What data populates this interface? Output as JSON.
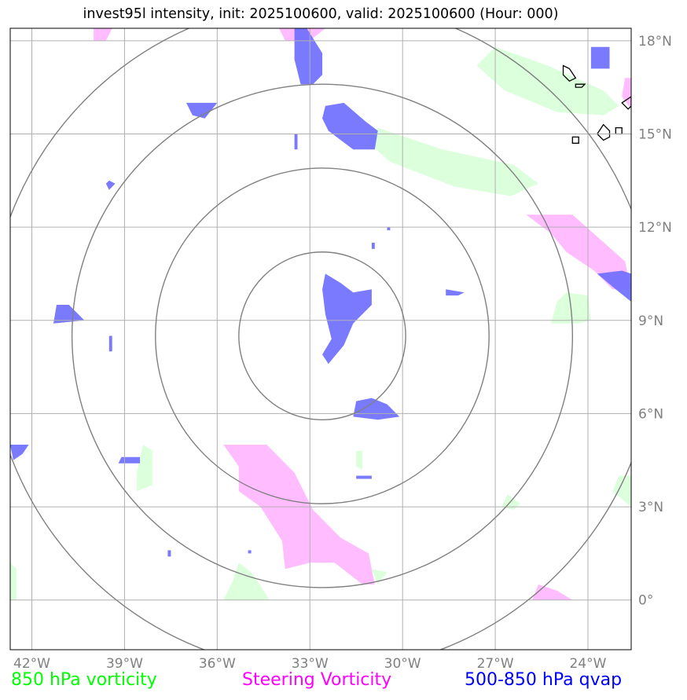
{
  "title": "invest95l intensity, init: 2025100600, valid: 2025100600 (Hour: 000)",
  "map": {
    "lon_range": [
      -42.7,
      -22.6
    ],
    "lat_range": [
      -1.6,
      18.4
    ],
    "center": {
      "lon": -32.6,
      "lat": 8.5
    },
    "ring_radii_deg": [
      2.7,
      5.4,
      8.1,
      10.8
    ],
    "lon_ticks": [
      {
        "value": -42,
        "label": "42°W"
      },
      {
        "value": -39,
        "label": "39°W"
      },
      {
        "value": -36,
        "label": "36°W"
      },
      {
        "value": -33,
        "label": "33°W"
      },
      {
        "value": -30,
        "label": "30°W"
      },
      {
        "value": -27,
        "label": "27°W"
      },
      {
        "value": -24,
        "label": "24°W"
      }
    ],
    "lat_ticks": [
      {
        "value": 18,
        "label": "18°N"
      },
      {
        "value": 15,
        "label": "15°N"
      },
      {
        "value": 12,
        "label": "12°N"
      },
      {
        "value": 9,
        "label": "9°N"
      },
      {
        "value": 6,
        "label": "6°N"
      },
      {
        "value": 3,
        "label": "3°N"
      },
      {
        "value": 0,
        "label": "0°"
      }
    ],
    "grid": true,
    "colors": {
      "vort850": "#dcffdc",
      "steering": "#ffb8ff",
      "qvap": "#6b6bff",
      "rings": "#808080",
      "grid": "#b0b0b0",
      "tick_label": "#808080",
      "coast": "#000000"
    },
    "vort850_regions": [
      [
        [
          -27.0,
          17.8
        ],
        [
          -25.3,
          17.2
        ],
        [
          -23.5,
          16.4
        ],
        [
          -23.0,
          15.9
        ],
        [
          -23.5,
          15.6
        ],
        [
          -25.0,
          15.7
        ],
        [
          -26.7,
          16.4
        ],
        [
          -27.6,
          17.2
        ]
      ],
      [
        [
          -30.8,
          15.2
        ],
        [
          -28.7,
          14.5
        ],
        [
          -26.4,
          14.0
        ],
        [
          -25.6,
          13.4
        ],
        [
          -26.5,
          13.0
        ],
        [
          -28.3,
          13.3
        ],
        [
          -30.4,
          14.1
        ],
        [
          -31.2,
          14.8
        ]
      ],
      [
        [
          -24.7,
          9.9
        ],
        [
          -24.0,
          9.8
        ],
        [
          -23.9,
          9.0
        ],
        [
          -24.3,
          8.9
        ],
        [
          -25.2,
          8.9
        ],
        [
          -25.0,
          9.6
        ]
      ],
      [
        [
          -38.4,
          5.0
        ],
        [
          -38.1,
          4.8
        ],
        [
          -38.1,
          3.7
        ],
        [
          -38.6,
          3.5
        ],
        [
          -38.6,
          4.1
        ]
      ],
      [
        [
          -35.3,
          1.2
        ],
        [
          -34.9,
          0.9
        ],
        [
          -34.3,
          0.0
        ],
        [
          -35.8,
          0.0
        ],
        [
          -35.5,
          0.6
        ]
      ],
      [
        [
          -23.0,
          4.0
        ],
        [
          -22.6,
          4.0
        ],
        [
          -22.6,
          3.0
        ],
        [
          -23.2,
          3.5
        ]
      ],
      [
        [
          -42.7,
          1.2
        ],
        [
          -42.5,
          1.0
        ],
        [
          -42.5,
          0.0
        ],
        [
          -42.7,
          0.0
        ]
      ],
      [
        [
          -31.0,
          1.0
        ],
        [
          -30.5,
          0.9
        ],
        [
          -30.8,
          0.5
        ]
      ],
      [
        [
          -26.6,
          3.4
        ],
        [
          -26.2,
          3.1
        ],
        [
          -26.4,
          2.9
        ],
        [
          -26.8,
          3.0
        ]
      ],
      [
        [
          -31.5,
          4.8
        ],
        [
          -31.3,
          4.8
        ],
        [
          -31.3,
          4.2
        ],
        [
          -31.5,
          4.3
        ]
      ]
    ],
    "steering_regions": [
      [
        [
          -35.8,
          5.0
        ],
        [
          -34.4,
          5.0
        ],
        [
          -33.5,
          4.1
        ],
        [
          -32.9,
          2.9
        ],
        [
          -32.0,
          2.0
        ],
        [
          -31.1,
          1.5
        ],
        [
          -30.9,
          0.5
        ],
        [
          -31.3,
          0.5
        ],
        [
          -32.2,
          1.2
        ],
        [
          -33.0,
          1.2
        ],
        [
          -33.8,
          1.0
        ],
        [
          -33.9,
          1.9
        ],
        [
          -34.6,
          3.0
        ],
        [
          -35.3,
          3.5
        ],
        [
          -35.3,
          4.3
        ]
      ],
      [
        [
          -26.0,
          12.4
        ],
        [
          -24.5,
          12.4
        ],
        [
          -22.8,
          10.9
        ],
        [
          -22.6,
          10.0
        ],
        [
          -23.2,
          10.0
        ],
        [
          -23.8,
          10.6
        ],
        [
          -24.7,
          11.2
        ],
        [
          -25.2,
          11.8
        ]
      ],
      [
        [
          -40.0,
          18.4
        ],
        [
          -39.4,
          18.4
        ],
        [
          -39.6,
          18.0
        ],
        [
          -40.0,
          18.0
        ]
      ],
      [
        [
          -34.0,
          18.4
        ],
        [
          -32.5,
          18.4
        ],
        [
          -33.0,
          18.0
        ],
        [
          -33.8,
          18.0
        ]
      ],
      [
        [
          -25.6,
          0.5
        ],
        [
          -25.0,
          0.3
        ],
        [
          -24.5,
          0.0
        ],
        [
          -25.8,
          0.0
        ]
      ],
      [
        [
          -22.8,
          16.8
        ],
        [
          -22.6,
          16.8
        ],
        [
          -22.6,
          15.8
        ],
        [
          -22.9,
          16.2
        ]
      ]
    ],
    "qvap_regions": [
      [
        [
          -33.5,
          18.4
        ],
        [
          -33.1,
          18.4
        ],
        [
          -32.6,
          17.6
        ],
        [
          -32.6,
          16.9
        ],
        [
          -32.9,
          16.6
        ],
        [
          -33.3,
          16.6
        ],
        [
          -33.5,
          17.4
        ]
      ],
      [
        [
          -32.5,
          15.9
        ],
        [
          -31.9,
          16.0
        ],
        [
          -31.2,
          15.4
        ],
        [
          -30.8,
          15.1
        ],
        [
          -30.9,
          14.5
        ],
        [
          -31.6,
          14.5
        ],
        [
          -32.4,
          15.1
        ],
        [
          -32.6,
          15.5
        ]
      ],
      [
        [
          -37.0,
          16.0
        ],
        [
          -36.0,
          16.0
        ],
        [
          -36.4,
          15.5
        ],
        [
          -36.8,
          15.6
        ]
      ],
      [
        [
          -32.5,
          10.5
        ],
        [
          -32.0,
          10.2
        ],
        [
          -31.6,
          9.9
        ],
        [
          -31.0,
          10.0
        ],
        [
          -31.0,
          9.5
        ],
        [
          -31.6,
          8.9
        ],
        [
          -31.9,
          8.2
        ],
        [
          -32.4,
          7.6
        ],
        [
          -32.6,
          7.9
        ],
        [
          -32.3,
          8.4
        ],
        [
          -32.5,
          9.2
        ],
        [
          -32.6,
          10.0
        ]
      ],
      [
        [
          -31.5,
          6.4
        ],
        [
          -31.0,
          6.5
        ],
        [
          -30.5,
          6.3
        ],
        [
          -30.1,
          5.9
        ],
        [
          -30.8,
          5.8
        ],
        [
          -31.6,
          5.9
        ]
      ],
      [
        [
          -41.2,
          9.5
        ],
        [
          -40.8,
          9.5
        ],
        [
          -40.5,
          9.2
        ],
        [
          -40.3,
          9.0
        ],
        [
          -41.3,
          8.9
        ]
      ],
      [
        [
          -23.7,
          10.5
        ],
        [
          -22.9,
          10.6
        ],
        [
          -22.6,
          10.5
        ],
        [
          -22.6,
          9.6
        ],
        [
          -23.1,
          10.0
        ]
      ],
      [
        [
          -23.9,
          17.8
        ],
        [
          -23.3,
          17.8
        ],
        [
          -23.3,
          17.1
        ],
        [
          -23.9,
          17.1
        ]
      ],
      [
        [
          -42.7,
          5.0
        ],
        [
          -42.1,
          5.0
        ],
        [
          -42.3,
          4.7
        ],
        [
          -42.6,
          4.5
        ]
      ],
      [
        [
          -39.1,
          4.6
        ],
        [
          -38.5,
          4.6
        ],
        [
          -38.5,
          4.4
        ],
        [
          -39.2,
          4.4
        ]
      ],
      [
        [
          -28.6,
          10.0
        ],
        [
          -28.0,
          9.9
        ],
        [
          -28.2,
          9.8
        ],
        [
          -28.6,
          9.8
        ]
      ],
      [
        [
          -33.5,
          15.0
        ],
        [
          -33.4,
          15.0
        ],
        [
          -33.4,
          14.5
        ],
        [
          -33.5,
          14.5
        ]
      ],
      [
        [
          -39.5,
          13.5
        ],
        [
          -39.3,
          13.4
        ],
        [
          -39.5,
          13.2
        ],
        [
          -39.6,
          13.4
        ]
      ],
      [
        [
          -31.5,
          4.0
        ],
        [
          -31.0,
          4.0
        ],
        [
          -31.0,
          3.9
        ],
        [
          -31.5,
          3.9
        ]
      ],
      [
        [
          -39.5,
          8.5
        ],
        [
          -39.4,
          8.5
        ],
        [
          -39.4,
          8.0
        ],
        [
          -39.5,
          8.0
        ]
      ],
      [
        [
          -30.5,
          12.0
        ],
        [
          -30.4,
          12.0
        ],
        [
          -30.4,
          11.9
        ],
        [
          -30.5,
          11.9
        ]
      ],
      [
        [
          -31.0,
          11.5
        ],
        [
          -30.9,
          11.5
        ],
        [
          -30.9,
          11.3
        ],
        [
          -31.0,
          11.3
        ]
      ],
      [
        [
          -37.6,
          1.6
        ],
        [
          -37.5,
          1.6
        ],
        [
          -37.5,
          1.4
        ],
        [
          -37.6,
          1.4
        ]
      ],
      [
        [
          -35.0,
          1.6
        ],
        [
          -34.9,
          1.6
        ],
        [
          -34.9,
          1.5
        ],
        [
          -35.0,
          1.5
        ]
      ]
    ],
    "coastlines": [
      [
        [
          -24.8,
          17.2
        ],
        [
          -24.6,
          17.1
        ],
        [
          -24.4,
          16.8
        ],
        [
          -24.6,
          16.7
        ],
        [
          -24.8,
          16.9
        ]
      ],
      [
        [
          -24.4,
          16.6
        ],
        [
          -24.1,
          16.6
        ],
        [
          -24.2,
          16.5
        ],
        [
          -24.4,
          16.5
        ]
      ],
      [
        [
          -23.5,
          15.3
        ],
        [
          -23.3,
          15.1
        ],
        [
          -23.3,
          14.9
        ],
        [
          -23.5,
          14.8
        ],
        [
          -23.7,
          15.0
        ]
      ],
      [
        [
          -23.1,
          15.2
        ],
        [
          -22.9,
          15.2
        ],
        [
          -22.9,
          15.0
        ],
        [
          -23.1,
          15.0
        ]
      ],
      [
        [
          -24.5,
          14.9
        ],
        [
          -24.3,
          14.9
        ],
        [
          -24.3,
          14.7
        ],
        [
          -24.5,
          14.7
        ]
      ],
      [
        [
          -22.6,
          16.2
        ],
        [
          -22.9,
          16.0
        ],
        [
          -22.7,
          15.8
        ],
        [
          -22.6,
          15.9
        ]
      ]
    ]
  },
  "legend": {
    "vort850": {
      "label": "850 hPa vorticity",
      "color": "#00ff00"
    },
    "steering": {
      "label": "Steering Vorticity",
      "color": "#ff00ff"
    },
    "qvap": {
      "label": "500-850 hPa qvap",
      "color": "#0000ff"
    }
  }
}
